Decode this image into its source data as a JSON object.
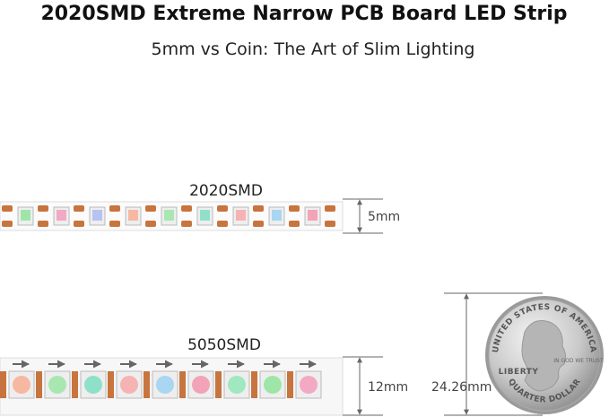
{
  "header": {
    "title": "2020SMD Extreme Narrow PCB Board LED Strip",
    "subtitle": "5mm vs Coin: The Art of Slim Lighting"
  },
  "strips": [
    {
      "label": "2020SMD",
      "width_label": "5mm"
    },
    {
      "label": "5050SMD",
      "width_label": "12mm"
    }
  ],
  "coin": {
    "diameter_label": "24.26mm",
    "top_text": "UNITED STATES OF AMERICA",
    "bottom_text": "QUARTER DOLLAR",
    "liberty": "LIBERTY",
    "motto": "IN GOD WE TRUST"
  }
}
